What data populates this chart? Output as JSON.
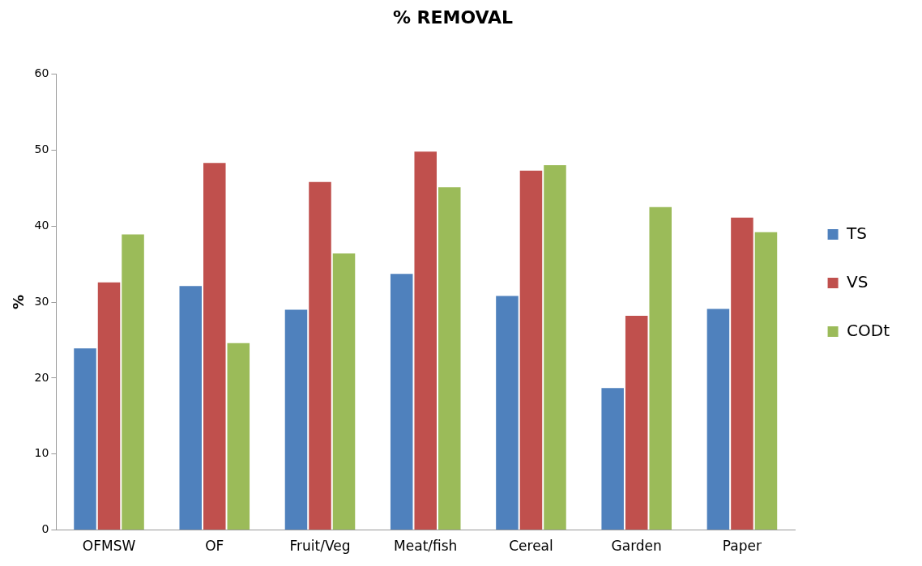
{
  "chart_data": {
    "type": "bar",
    "title": "% REMOVAL",
    "ylabel": "%",
    "categories": [
      "OFMSW",
      "OF",
      "Fruit/Veg",
      "Meat/fish",
      "Cereal",
      "Garden",
      "Paper"
    ],
    "series": [
      {
        "name": "TS",
        "color": "#4f81bd",
        "values": [
          24.0,
          32.2,
          29.1,
          33.8,
          30.9,
          18.8,
          29.2
        ]
      },
      {
        "name": "VS",
        "color": "#c0504d",
        "values": [
          32.7,
          48.4,
          45.9,
          49.9,
          47.4,
          28.3,
          41.2
        ]
      },
      {
        "name": "CODt",
        "color": "#9bbb59",
        "values": [
          39.0,
          24.7,
          36.5,
          45.2,
          48.1,
          42.6,
          39.3
        ]
      }
    ],
    "ylim": [
      0,
      60
    ],
    "yticks": [
      0,
      10,
      20,
      30,
      40,
      50,
      60
    ],
    "grid": false,
    "legend": "right"
  }
}
